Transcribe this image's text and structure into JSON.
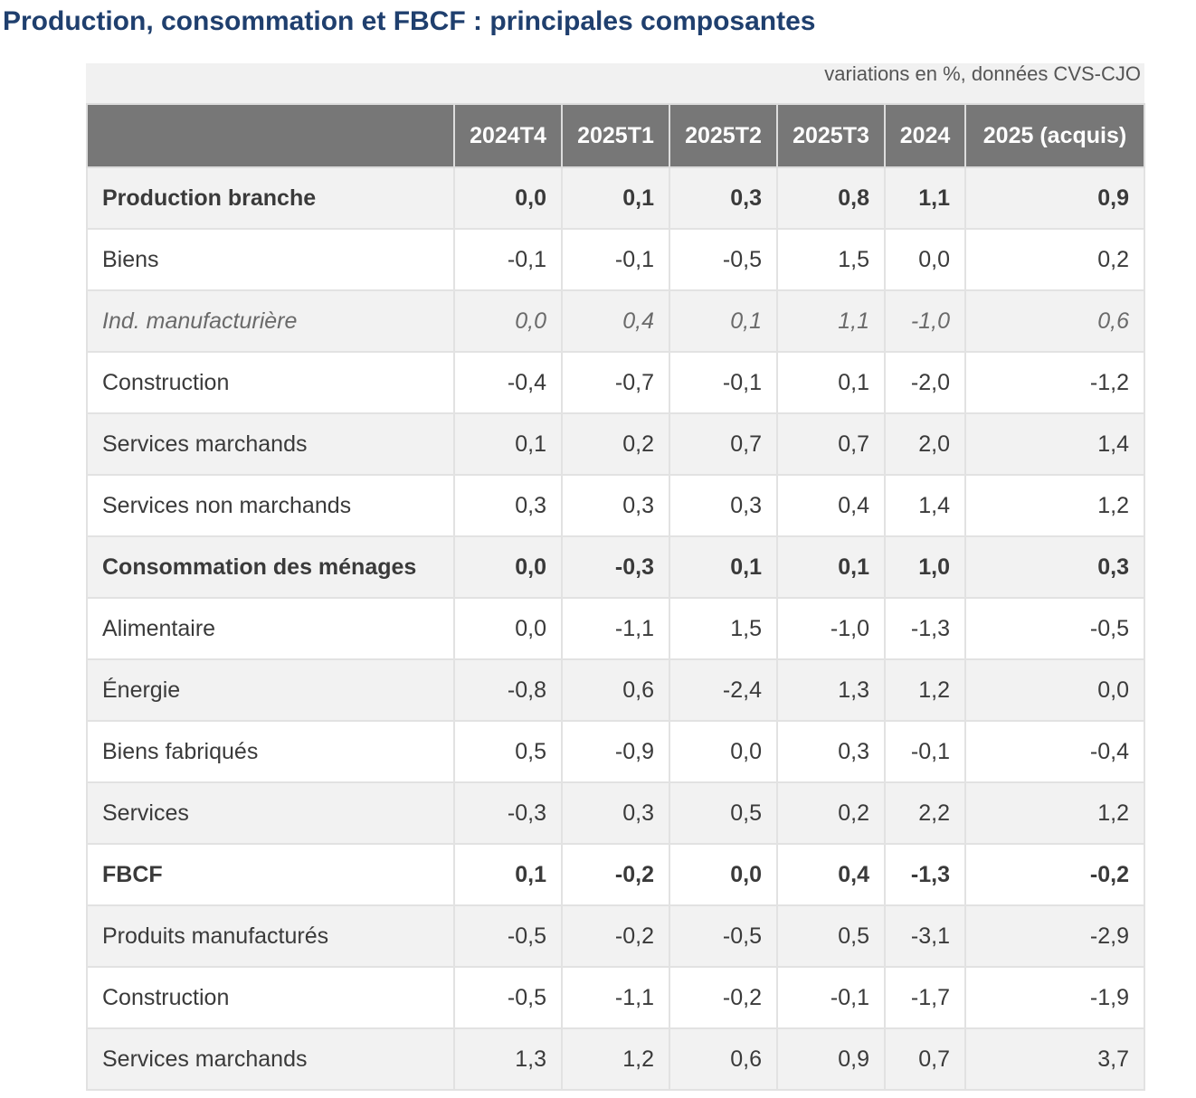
{
  "title": "Production, consommation et FBCF : principales composantes",
  "caption": "variations en %, données CVS-CJO",
  "columns": [
    "",
    "2024T4",
    "2025T1",
    "2025T2",
    "2025T3",
    "2024",
    "2025 (acquis)"
  ],
  "rows": [
    {
      "label": "Production branche",
      "values": [
        "0,0",
        "0,1",
        "0,3",
        "0,8",
        "1,1",
        "0,9"
      ],
      "style": "bold"
    },
    {
      "label": "Biens",
      "values": [
        "-0,1",
        "-0,1",
        "-0,5",
        "1,5",
        "0,0",
        "0,2"
      ],
      "style": "normal"
    },
    {
      "label": "Ind. manufacturière",
      "values": [
        "0,0",
        "0,4",
        "0,1",
        "1,1",
        "-1,0",
        "0,6"
      ],
      "style": "italic"
    },
    {
      "label": "Construction",
      "values": [
        "-0,4",
        "-0,7",
        "-0,1",
        "0,1",
        "-2,0",
        "-1,2"
      ],
      "style": "normal"
    },
    {
      "label": "Services marchands",
      "values": [
        "0,1",
        "0,2",
        "0,7",
        "0,7",
        "2,0",
        "1,4"
      ],
      "style": "normal"
    },
    {
      "label": "Services non marchands",
      "values": [
        "0,3",
        "0,3",
        "0,3",
        "0,4",
        "1,4",
        "1,2"
      ],
      "style": "normal"
    },
    {
      "label": "Consommation des ménages",
      "values": [
        "0,0",
        "-0,3",
        "0,1",
        "0,1",
        "1,0",
        "0,3"
      ],
      "style": "bold"
    },
    {
      "label": "Alimentaire",
      "values": [
        "0,0",
        "-1,1",
        "1,5",
        "-1,0",
        "-1,3",
        "-0,5"
      ],
      "style": "normal"
    },
    {
      "label": "Énergie",
      "values": [
        "-0,8",
        "0,6",
        "-2,4",
        "1,3",
        "1,2",
        "0,0"
      ],
      "style": "normal"
    },
    {
      "label": "Biens fabriqués",
      "values": [
        "0,5",
        "-0,9",
        "0,0",
        "0,3",
        "-0,1",
        "-0,4"
      ],
      "style": "normal"
    },
    {
      "label": "Services",
      "values": [
        "-0,3",
        "0,3",
        "0,5",
        "0,2",
        "2,2",
        "1,2"
      ],
      "style": "normal"
    },
    {
      "label": "FBCF",
      "values": [
        "0,1",
        "-0,2",
        "0,0",
        "0,4",
        "-1,3",
        "-0,2"
      ],
      "style": "bold"
    },
    {
      "label": "Produits manufacturés",
      "values": [
        "-0,5",
        "-0,2",
        "-0,5",
        "0,5",
        "-3,1",
        "-2,9"
      ],
      "style": "normal"
    },
    {
      "label": "Construction",
      "values": [
        "-0,5",
        "-1,1",
        "-0,2",
        "-0,1",
        "-1,7",
        "-1,9"
      ],
      "style": "normal"
    },
    {
      "label": "Services marchands",
      "values": [
        "1,3",
        "1,2",
        "0,6",
        "0,9",
        "0,7",
        "3,7"
      ],
      "style": "normal"
    }
  ]
}
